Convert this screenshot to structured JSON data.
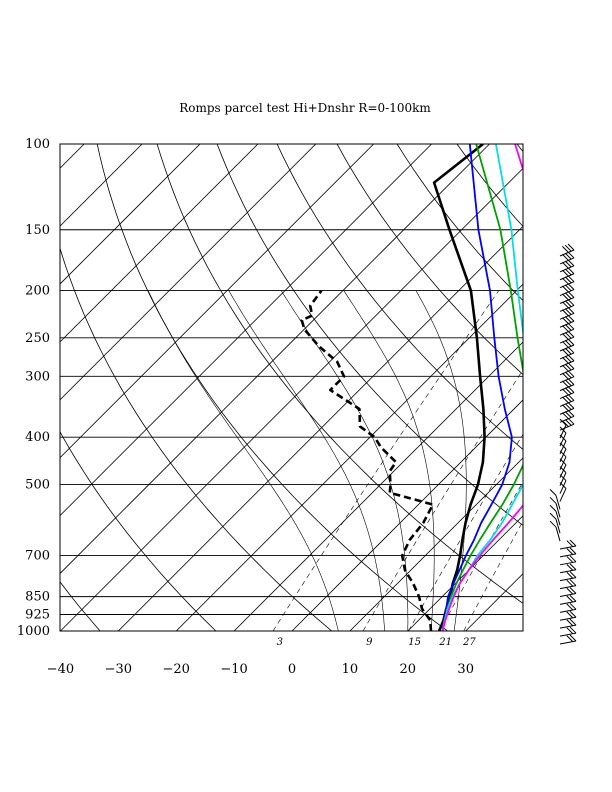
{
  "chart_data": {
    "type": "line",
    "subtype": "skew-T log-p diagram",
    "title": "Romps parcel test Hi+Dnshr R=0-100km",
    "xlabel": "",
    "ylabel": "",
    "x_unit": "degC",
    "y_unit": "hPa",
    "y_scale": "log",
    "xlim": [
      -40,
      40
    ],
    "ylim": [
      1000,
      100
    ],
    "pressure_levels": [
      100,
      150,
      200,
      250,
      300,
      400,
      500,
      700,
      850,
      925,
      1000
    ],
    "pressure_labels": [
      "100",
      "150",
      "200",
      "250",
      "300",
      "400",
      "500",
      "700",
      "850",
      "925",
      "1000"
    ],
    "x_ticks": [
      -40,
      -30,
      -20,
      -10,
      0,
      10,
      20,
      30
    ],
    "x_tick_labels": [
      "−40",
      "−30",
      "−20",
      "−10",
      "0",
      "10",
      "20",
      "30"
    ],
    "mixing_ratio_labels": [
      "3",
      "9",
      "15",
      "21",
      "27"
    ],
    "mixing_ratio_values": [
      3,
      9,
      15,
      21,
      27
    ],
    "grid": true,
    "background_lines": [
      "isotherms",
      "dry adiabats",
      "moist adiabats",
      "mixing ratio lines"
    ],
    "series": [
      {
        "role": "temperature",
        "color": "#000000",
        "style": "solid",
        "points": [
          [
            25.4,
            1000
          ],
          [
            24.3,
            950
          ],
          [
            22.8,
            900
          ],
          [
            21.4,
            850
          ],
          [
            19.6,
            800
          ],
          [
            18,
            750
          ],
          [
            16,
            700
          ],
          [
            13.7,
            650
          ],
          [
            11.3,
            600
          ],
          [
            9,
            550
          ],
          [
            6.8,
            500
          ],
          [
            3.8,
            450
          ],
          [
            -0.2,
            400
          ],
          [
            -5.3,
            350
          ],
          [
            -11.5,
            300
          ],
          [
            -18.7,
            250
          ],
          [
            -27.9,
            200
          ],
          [
            -42.1,
            150
          ],
          [
            -52.9,
            120
          ],
          [
            -51.1,
            100
          ]
        ]
      },
      {
        "role": "dewpoint",
        "color": "#000000",
        "style": "dashed",
        "points": [
          [
            24,
            1000
          ],
          [
            22,
            950
          ],
          [
            18.6,
            900
          ],
          [
            16,
            850
          ],
          [
            12.8,
            800
          ],
          [
            9,
            750
          ],
          [
            6,
            700
          ],
          [
            4.6,
            650
          ],
          [
            4,
            600
          ],
          [
            2.5,
            550
          ],
          [
            -7,
            520
          ],
          [
            -8.3,
            500
          ],
          [
            -10.7,
            470
          ],
          [
            -11.2,
            450
          ],
          [
            -16.3,
            420
          ],
          [
            -19.2,
            400
          ],
          [
            -23.6,
            380
          ],
          [
            -26.7,
            350
          ],
          [
            -35,
            320
          ],
          [
            -35,
            300
          ],
          [
            -38.7,
            280
          ],
          [
            -44.6,
            260
          ],
          [
            -50,
            240
          ],
          [
            -52,
            230
          ],
          [
            -51,
            225
          ],
          [
            -53,
            215
          ],
          [
            -53.7,
            200
          ]
        ]
      },
      {
        "role": "parcel",
        "color": "#0000ff",
        "style": "solid",
        "points": [
          [
            26,
            1000
          ],
          [
            24.4,
            950
          ],
          [
            22.8,
            900
          ],
          [
            21,
            850
          ],
          [
            19.7,
            800
          ],
          [
            18.4,
            750
          ],
          [
            17,
            700
          ],
          [
            15.7,
            650
          ],
          [
            14,
            600
          ],
          [
            12.6,
            550
          ],
          [
            11,
            500
          ],
          [
            8.4,
            450
          ],
          [
            4.5,
            400
          ],
          [
            -1.6,
            350
          ],
          [
            -8.3,
            300
          ],
          [
            -15.7,
            250
          ],
          [
            -24.6,
            200
          ],
          [
            -37.1,
            150
          ],
          [
            -53.4,
            100
          ]
        ]
      },
      {
        "role": "parcel",
        "color": "#00a000",
        "style": "solid",
        "points": [
          [
            26,
            1000
          ],
          [
            24.5,
            950
          ],
          [
            23,
            900
          ],
          [
            21.5,
            850
          ],
          [
            20.2,
            800
          ],
          [
            19,
            750
          ],
          [
            17.8,
            700
          ],
          [
            16.7,
            650
          ],
          [
            15.6,
            600
          ],
          [
            14.5,
            550
          ],
          [
            13,
            500
          ],
          [
            11,
            450
          ],
          [
            7.9,
            400
          ],
          [
            2.8,
            350
          ],
          [
            -3.9,
            300
          ],
          [
            -11.7,
            250
          ],
          [
            -21,
            200
          ],
          [
            -33.3,
            150
          ],
          [
            -52.3,
            100
          ]
        ]
      },
      {
        "role": "parcel",
        "color": "#00e0e0",
        "style": "solid",
        "points": [
          [
            26,
            1000
          ],
          [
            24.5,
            950
          ],
          [
            23,
            900
          ],
          [
            21.8,
            850
          ],
          [
            20.8,
            800
          ],
          [
            20,
            750
          ],
          [
            19,
            700
          ],
          [
            18.5,
            650
          ],
          [
            17.6,
            600
          ],
          [
            16.2,
            550
          ],
          [
            14.6,
            500
          ],
          [
            12.2,
            450
          ],
          [
            8.9,
            400
          ],
          [
            3.6,
            350
          ],
          [
            -3,
            300
          ],
          [
            -10.6,
            250
          ],
          [
            -19.8,
            200
          ],
          [
            -31.4,
            150
          ],
          [
            -48.9,
            100
          ]
        ]
      },
      {
        "role": "parcel",
        "color": "#ff00ff",
        "style": "solid",
        "points": [
          [
            26,
            1000
          ],
          [
            24.6,
            950
          ],
          [
            23.3,
            900
          ],
          [
            22,
            850
          ],
          [
            20.8,
            800
          ],
          [
            20,
            750
          ],
          [
            19.4,
            700
          ],
          [
            19,
            650
          ],
          [
            18.7,
            600
          ],
          [
            18.2,
            550
          ],
          [
            17.3,
            500
          ],
          [
            15.9,
            450
          ],
          [
            13.3,
            400
          ],
          [
            9.3,
            350
          ],
          [
            2.9,
            300
          ],
          [
            -4.1,
            250
          ],
          [
            -13.1,
            200
          ],
          [
            -26.1,
            150
          ],
          [
            -45.6,
            100
          ]
        ]
      }
    ],
    "wind_barbs": {
      "levels_hPa": [
        1000,
        100
      ],
      "count": 50
    }
  }
}
